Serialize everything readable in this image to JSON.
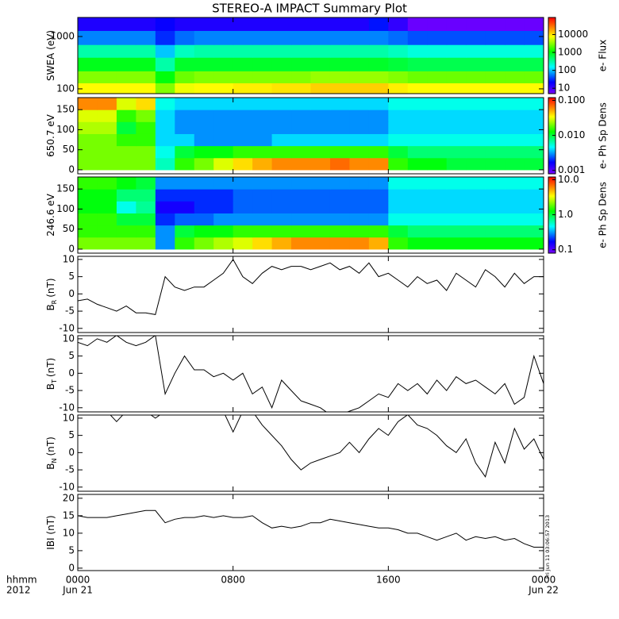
{
  "title": "STEREO-A IMPACT Summary Plot",
  "chart_data": [
    {
      "type": "heatmap",
      "ylabel": "SWEA (eV)",
      "ylog": true,
      "ylim": [
        81,
        2310
      ],
      "yticks": [
        100,
        1000
      ],
      "xlim": [
        0,
        24
      ],
      "xticks": [
        0,
        8,
        16,
        24
      ],
      "x_edges": [
        0,
        1,
        2,
        3,
        4,
        5,
        6,
        7,
        8,
        9,
        10,
        11,
        12,
        13,
        14,
        15,
        16,
        17,
        18,
        19,
        20,
        21,
        22,
        23,
        24
      ],
      "y_edges": [
        81,
        130,
        220,
        400,
        700,
        1300,
        2310
      ],
      "z": [
        [
          8000,
          8000,
          8000,
          8000,
          3000,
          7000,
          8000,
          8000,
          9000,
          9000,
          10000,
          10000,
          12000,
          12000,
          12000,
          12000,
          9000,
          8000,
          8000,
          8000,
          8000,
          8000,
          8000,
          8000
        ],
        [
          3000,
          3000,
          3000,
          3000,
          1000,
          2500,
          3000,
          3000,
          3000,
          3000,
          3000,
          3000,
          3500,
          3500,
          3500,
          3500,
          3000,
          2500,
          2500,
          2500,
          2500,
          2500,
          2500,
          2500
        ],
        [
          900,
          900,
          900,
          900,
          300,
          800,
          800,
          800,
          800,
          800,
          800,
          800,
          800,
          800,
          800,
          800,
          700,
          600,
          600,
          600,
          600,
          600,
          600,
          600
        ],
        [
          300,
          300,
          300,
          300,
          100,
          250,
          300,
          300,
          300,
          300,
          300,
          300,
          300,
          300,
          300,
          300,
          250,
          200,
          200,
          200,
          200,
          200,
          200,
          200
        ],
        [
          60,
          60,
          60,
          60,
          30,
          50,
          60,
          60,
          60,
          60,
          60,
          60,
          60,
          60,
          60,
          60,
          50,
          40,
          40,
          40,
          40,
          40,
          40,
          40
        ],
        [
          15,
          15,
          15,
          15,
          20,
          15,
          15,
          15,
          15,
          15,
          15,
          15,
          15,
          15,
          15,
          25,
          12,
          6,
          6,
          6,
          6,
          6,
          6,
          6
        ]
      ],
      "zlog": true,
      "zlim": [
        5,
        90000
      ],
      "zticks": [
        10,
        100,
        1000,
        10000
      ],
      "colorbar_label": "e- Flux"
    },
    {
      "type": "heatmap",
      "ylabel": "650.7 eV",
      "ylim": [
        -10,
        180
      ],
      "yticks": [
        0,
        50,
        100,
        150
      ],
      "xlim": [
        0,
        24
      ],
      "xticks": [
        0,
        8,
        16,
        24
      ],
      "x_edges": [
        0,
        1,
        2,
        3,
        4,
        5,
        6,
        7,
        8,
        9,
        10,
        11,
        12,
        13,
        14,
        15,
        16,
        17,
        18,
        19,
        20,
        21,
        22,
        23,
        24
      ],
      "y_edges": [
        0,
        30,
        60,
        90,
        120,
        150,
        180
      ],
      "z": [
        [
          0.02,
          0.02,
          0.02,
          0.02,
          0.006,
          0.015,
          0.02,
          0.03,
          0.04,
          0.05,
          0.06,
          0.06,
          0.06,
          0.07,
          0.06,
          0.06,
          0.015,
          0.012,
          0.012,
          0.01,
          0.01,
          0.01,
          0.01,
          0.01
        ],
        [
          0.02,
          0.02,
          0.02,
          0.02,
          0.005,
          0.01,
          0.012,
          0.012,
          0.015,
          0.015,
          0.015,
          0.015,
          0.015,
          0.015,
          0.015,
          0.015,
          0.01,
          0.008,
          0.008,
          0.008,
          0.008,
          0.008,
          0.008,
          0.008
        ],
        [
          0.02,
          0.02,
          0.015,
          0.015,
          0.004,
          0.004,
          0.003,
          0.003,
          0.003,
          0.003,
          0.004,
          0.004,
          0.004,
          0.004,
          0.004,
          0.004,
          0.005,
          0.005,
          0.005,
          0.005,
          0.005,
          0.005,
          0.005,
          0.005
        ],
        [
          0.025,
          0.025,
          0.01,
          0.015,
          0.004,
          0.003,
          0.003,
          0.003,
          0.003,
          0.003,
          0.003,
          0.003,
          0.003,
          0.003,
          0.003,
          0.003,
          0.004,
          0.004,
          0.004,
          0.004,
          0.004,
          0.004,
          0.004,
          0.004
        ],
        [
          0.03,
          0.03,
          0.015,
          0.02,
          0.004,
          0.003,
          0.003,
          0.003,
          0.003,
          0.003,
          0.003,
          0.003,
          0.003,
          0.003,
          0.003,
          0.003,
          0.004,
          0.004,
          0.004,
          0.004,
          0.004,
          0.004,
          0.004,
          0.004
        ],
        [
          0.06,
          0.06,
          0.03,
          0.04,
          0.005,
          0.004,
          0.004,
          0.004,
          0.004,
          0.004,
          0.004,
          0.004,
          0.004,
          0.004,
          0.004,
          0.004,
          0.005,
          0.005,
          0.005,
          0.005,
          0.005,
          0.005,
          0.005,
          0.005
        ]
      ],
      "zlog": true,
      "zlim": [
        0.0008,
        0.12
      ],
      "zticks": [
        0.001,
        {
          "value": 0.01,
          "label": "0.010"
        },
        {
          "value": 0.1,
          "label": "0.100"
        }
      ],
      "colorbar_label": "e- Ph Sp Dens"
    },
    {
      "type": "heatmap",
      "ylabel": "246.6 eV",
      "ylim": [
        -10,
        180
      ],
      "yticks": [
        0,
        50,
        100,
        150
      ],
      "xlim": [
        0,
        24
      ],
      "xticks": [
        0,
        8,
        16,
        24
      ],
      "x_edges": [
        0,
        1,
        2,
        3,
        4,
        5,
        6,
        7,
        8,
        9,
        10,
        11,
        12,
        13,
        14,
        15,
        16,
        17,
        18,
        19,
        20,
        21,
        22,
        23,
        24
      ],
      "y_edges": [
        0,
        30,
        60,
        90,
        120,
        150,
        180
      ],
      "z": [
        [
          2,
          2,
          2,
          2,
          0.3,
          1.5,
          2,
          2.5,
          3,
          4,
          5,
          6,
          6,
          6,
          6,
          5,
          1.5,
          1.2,
          1.2,
          1.2,
          1.2,
          1.2,
          1.2,
          1.2
        ],
        [
          1.5,
          1.5,
          1.5,
          1.5,
          0.3,
          1,
          1.2,
          1.2,
          1.5,
          1.5,
          1.5,
          1.5,
          1.5,
          1.5,
          1.5,
          1.5,
          1,
          0.8,
          0.8,
          0.8,
          0.8,
          0.8,
          0.8,
          0.8
        ],
        [
          1.5,
          1.5,
          1,
          1,
          0.2,
          0.25,
          0.25,
          0.3,
          0.3,
          0.3,
          0.3,
          0.3,
          0.3,
          0.3,
          0.3,
          0.3,
          0.5,
          0.5,
          0.5,
          0.5,
          0.5,
          0.5,
          0.5,
          0.5
        ],
        [
          1.2,
          1.2,
          0.5,
          0.7,
          0.15,
          0.15,
          0.2,
          0.2,
          0.25,
          0.25,
          0.25,
          0.25,
          0.25,
          0.25,
          0.25,
          0.25,
          0.4,
          0.4,
          0.4,
          0.4,
          0.4,
          0.4,
          0.4,
          0.4
        ],
        [
          1.2,
          1.2,
          0.8,
          0.8,
          0.2,
          0.2,
          0.2,
          0.2,
          0.25,
          0.25,
          0.25,
          0.25,
          0.25,
          0.25,
          0.25,
          0.25,
          0.4,
          0.4,
          0.4,
          0.4,
          0.4,
          0.4,
          0.4,
          0.4
        ],
        [
          1.5,
          1.5,
          1.2,
          1,
          0.3,
          0.3,
          0.3,
          0.3,
          0.3,
          0.3,
          0.3,
          0.3,
          0.3,
          0.3,
          0.3,
          0.3,
          0.5,
          0.5,
          0.5,
          0.5,
          0.5,
          0.5,
          0.5,
          0.5
        ]
      ],
      "zlog": true,
      "zlim": [
        0.08,
        12
      ],
      "zticks": [
        0.1,
        {
          "value": 1,
          "label": "1.0"
        },
        {
          "value": 10,
          "label": "10.0"
        }
      ],
      "colorbar_label": "e- Ph Sp Dens"
    },
    {
      "type": "line",
      "ylabel": "B",
      "ylabel_sub": "R",
      "ylabel_unit": "(nT)",
      "ylim": [
        -11.2,
        10.9
      ],
      "yticks": [
        -10,
        -5,
        0,
        5,
        10
      ],
      "xlim": [
        0,
        24
      ],
      "xticks": [
        0,
        8,
        16,
        24
      ],
      "color": "#000000",
      "x": [
        0,
        0.5,
        1,
        1.5,
        2,
        2.5,
        3,
        3.5,
        4,
        4.5,
        5,
        5.5,
        6,
        6.5,
        7,
        7.5,
        8,
        8.5,
        9,
        9.5,
        10,
        10.5,
        11,
        11.5,
        12,
        12.5,
        13,
        13.5,
        14,
        14.5,
        15,
        15.5,
        16,
        16.5,
        17,
        17.5,
        18,
        18.5,
        19,
        19.5,
        20,
        20.5,
        21,
        21.5,
        22,
        22.5,
        23,
        23.5,
        24
      ],
      "values": [
        -2,
        -1.5,
        -3,
        -4,
        -5,
        -3.5,
        -5.5,
        -5.5,
        -6,
        5,
        2,
        1,
        2,
        2,
        4,
        6,
        10,
        5,
        3,
        6,
        8,
        7,
        8,
        8,
        7,
        8,
        9,
        7,
        8,
        6,
        9,
        5,
        6,
        4,
        2,
        5,
        3,
        4,
        1,
        6,
        4,
        2,
        7,
        5,
        2,
        6,
        3,
        5,
        5
      ]
    },
    {
      "type": "line",
      "ylabel": "B",
      "ylabel_sub": "T",
      "ylabel_unit": "(nT)",
      "ylim": [
        -11.2,
        10.9
      ],
      "yticks": [
        -10,
        -5,
        0,
        5,
        10
      ],
      "xlim": [
        0,
        24
      ],
      "xticks": [
        0,
        8,
        16,
        24
      ],
      "color": "#000000",
      "x": [
        0,
        0.5,
        1,
        1.5,
        2,
        2.5,
        3,
        3.5,
        4,
        4.5,
        5,
        5.5,
        6,
        6.5,
        7,
        7.5,
        8,
        8.5,
        9,
        9.5,
        10,
        10.5,
        11,
        11.5,
        12,
        12.5,
        13,
        13.5,
        14,
        14.5,
        15,
        15.5,
        16,
        16.5,
        17,
        17.5,
        18,
        18.5,
        19,
        19.5,
        20,
        20.5,
        21,
        21.5,
        22,
        22.5,
        23,
        23.5,
        24
      ],
      "values": [
        9,
        8,
        10,
        9,
        11,
        9,
        8,
        9,
        11,
        -6,
        0,
        5,
        1,
        1,
        -1,
        0,
        -2,
        0,
        -6,
        -4,
        -10,
        -2,
        -5,
        -8,
        -9,
        -10,
        -12,
        -12,
        -11,
        -10,
        -8,
        -6,
        -7,
        -3,
        -5,
        -3,
        -6,
        -2,
        -5,
        -1,
        -3,
        -2,
        -4,
        -6,
        -3,
        -9,
        -7,
        5,
        -3
      ]
    },
    {
      "type": "line",
      "ylabel": "B",
      "ylabel_sub": "N",
      "ylabel_unit": "(nT)",
      "ylim": [
        -11.2,
        10.9
      ],
      "yticks": [
        -10,
        -5,
        0,
        5,
        10
      ],
      "xlim": [
        0,
        24
      ],
      "xticks": [
        0,
        8,
        16,
        24
      ],
      "color": "#000000",
      "x": [
        0,
        0.5,
        1,
        1.5,
        2,
        2.5,
        3,
        3.5,
        4,
        4.5,
        5,
        5.5,
        6,
        6.5,
        7,
        7.5,
        8,
        8.5,
        9,
        9.5,
        10,
        10.5,
        11,
        11.5,
        12,
        12.5,
        13,
        13.5,
        14,
        14.5,
        15,
        15.5,
        16,
        16.5,
        17,
        17.5,
        18,
        18.5,
        19,
        19.5,
        20,
        20.5,
        21,
        21.5,
        22,
        22.5,
        23,
        23.5,
        24
      ],
      "values": [
        12,
        12,
        12,
        12,
        9,
        12,
        12,
        12,
        10,
        12,
        12,
        12,
        12,
        12,
        12,
        12,
        6,
        12,
        12,
        8,
        5,
        2,
        -2,
        -5,
        -3,
        -2,
        -1,
        0,
        3,
        0,
        4,
        7,
        5,
        9,
        11,
        8,
        7,
        5,
        2,
        0,
        4,
        -3,
        -7,
        3,
        -3,
        7,
        1,
        4,
        -2
      ]
    },
    {
      "type": "line",
      "ylabel": "IBI (nT)",
      "ylim": [
        -0.7,
        21.1
      ],
      "yticks": [
        0,
        5,
        10,
        15,
        20
      ],
      "xlim": [
        0,
        24
      ],
      "xticks": [
        {
          "value": 0,
          "label": "0000"
        },
        {
          "value": 8,
          "label": "0800"
        },
        {
          "value": 16,
          "label": "1600"
        },
        {
          "value": 24,
          "label": "0000"
        }
      ],
      "date_labels": [
        {
          "value": 0,
          "label": "Jun 21"
        },
        {
          "value": 24,
          "label": "Jun 22"
        }
      ],
      "xlabel": [
        "hhmm",
        "2012"
      ],
      "annotation": "Fri Jun 11 03:06:57 2013",
      "color": "#000000",
      "x": [
        0,
        0.5,
        1,
        1.5,
        2,
        2.5,
        3,
        3.5,
        4,
        4.5,
        5,
        5.5,
        6,
        6.5,
        7,
        7.5,
        8,
        8.5,
        9,
        9.5,
        10,
        10.5,
        11,
        11.5,
        12,
        12.5,
        13,
        13.5,
        14,
        14.5,
        15,
        15.5,
        16,
        16.5,
        17,
        17.5,
        18,
        18.5,
        19,
        19.5,
        20,
        20.5,
        21,
        21.5,
        22,
        22.5,
        23,
        23.5,
        24
      ],
      "values": [
        15,
        14.5,
        14.5,
        14.5,
        15,
        15.5,
        16,
        16.5,
        16.5,
        13,
        14,
        14.5,
        14.5,
        15,
        14.5,
        15,
        14.5,
        14.5,
        15,
        13,
        11.5,
        12,
        11.5,
        12,
        13,
        13,
        14,
        13.5,
        13,
        12.5,
        12,
        11.5,
        11.5,
        11,
        10,
        10,
        9,
        8,
        9,
        10,
        8,
        9,
        8.5,
        9,
        8,
        8.5,
        7,
        6,
        6
      ]
    }
  ]
}
